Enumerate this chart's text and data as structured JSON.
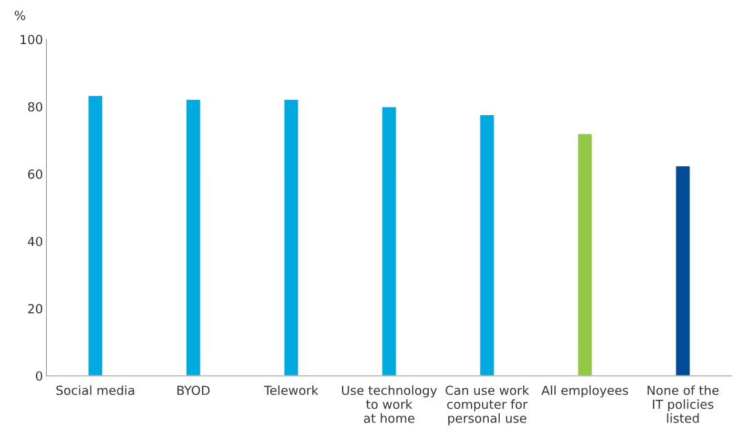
{
  "chart_data": {
    "type": "bar",
    "ylabel": "%",
    "categories": [
      "Social media",
      "BYOD",
      "Telework",
      "Use technology\nto work\nat home",
      "Can use work\ncomputer for\npersonal use",
      "All employees",
      "None of the\nIT policies\nlisted"
    ],
    "values": [
      83.3,
      82.2,
      82.2,
      80,
      77.6,
      72,
      62.4
    ],
    "colors": [
      "#00a9e0",
      "#00a9e0",
      "#00a9e0",
      "#00a9e0",
      "#00a9e0",
      "#92c848",
      "#004c97"
    ],
    "ylim": [
      0,
      100
    ],
    "yticks": [
      0,
      20,
      40,
      60,
      80,
      100
    ],
    "grid": false
  }
}
